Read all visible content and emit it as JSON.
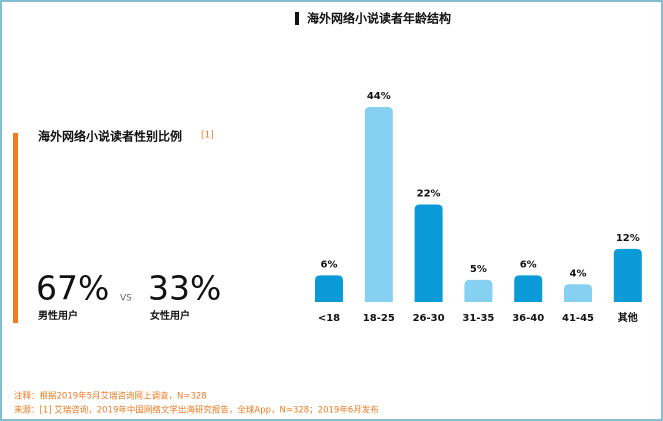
{
  "chart_data": {
    "type": "bar",
    "title": "海外网络小说读者年龄结构",
    "categories": [
      "<18",
      "18-25",
      "26-30",
      "31-35",
      "36-40",
      "41-45",
      "其他"
    ],
    "values": [
      6,
      44,
      22,
      5,
      6,
      4,
      12
    ],
    "value_labels": [
      "6%",
      "44%",
      "22%",
      "5%",
      "6%",
      "4%",
      "12%"
    ],
    "colors": [
      "#0a9ad8",
      "#86d1f1",
      "#0a9ad8",
      "#86d1f1",
      "#0a9ad8",
      "#86d1f1",
      "#0a9ad8"
    ]
  },
  "gender": {
    "title": "海外网络小说读者性别比例",
    "ref": "[1]",
    "male_share": "67%",
    "male_label": "男性用户",
    "vs": "VS",
    "female_share": "33%",
    "female_label": "女性用户"
  },
  "notes": [
    "注释：根据2019年5月艾瑞咨询网上调查，N=328",
    "来源：[1] 艾瑞咨询，2019年中国网络文学出海研究报告，全球App，N=328；2019年6月发布"
  ]
}
